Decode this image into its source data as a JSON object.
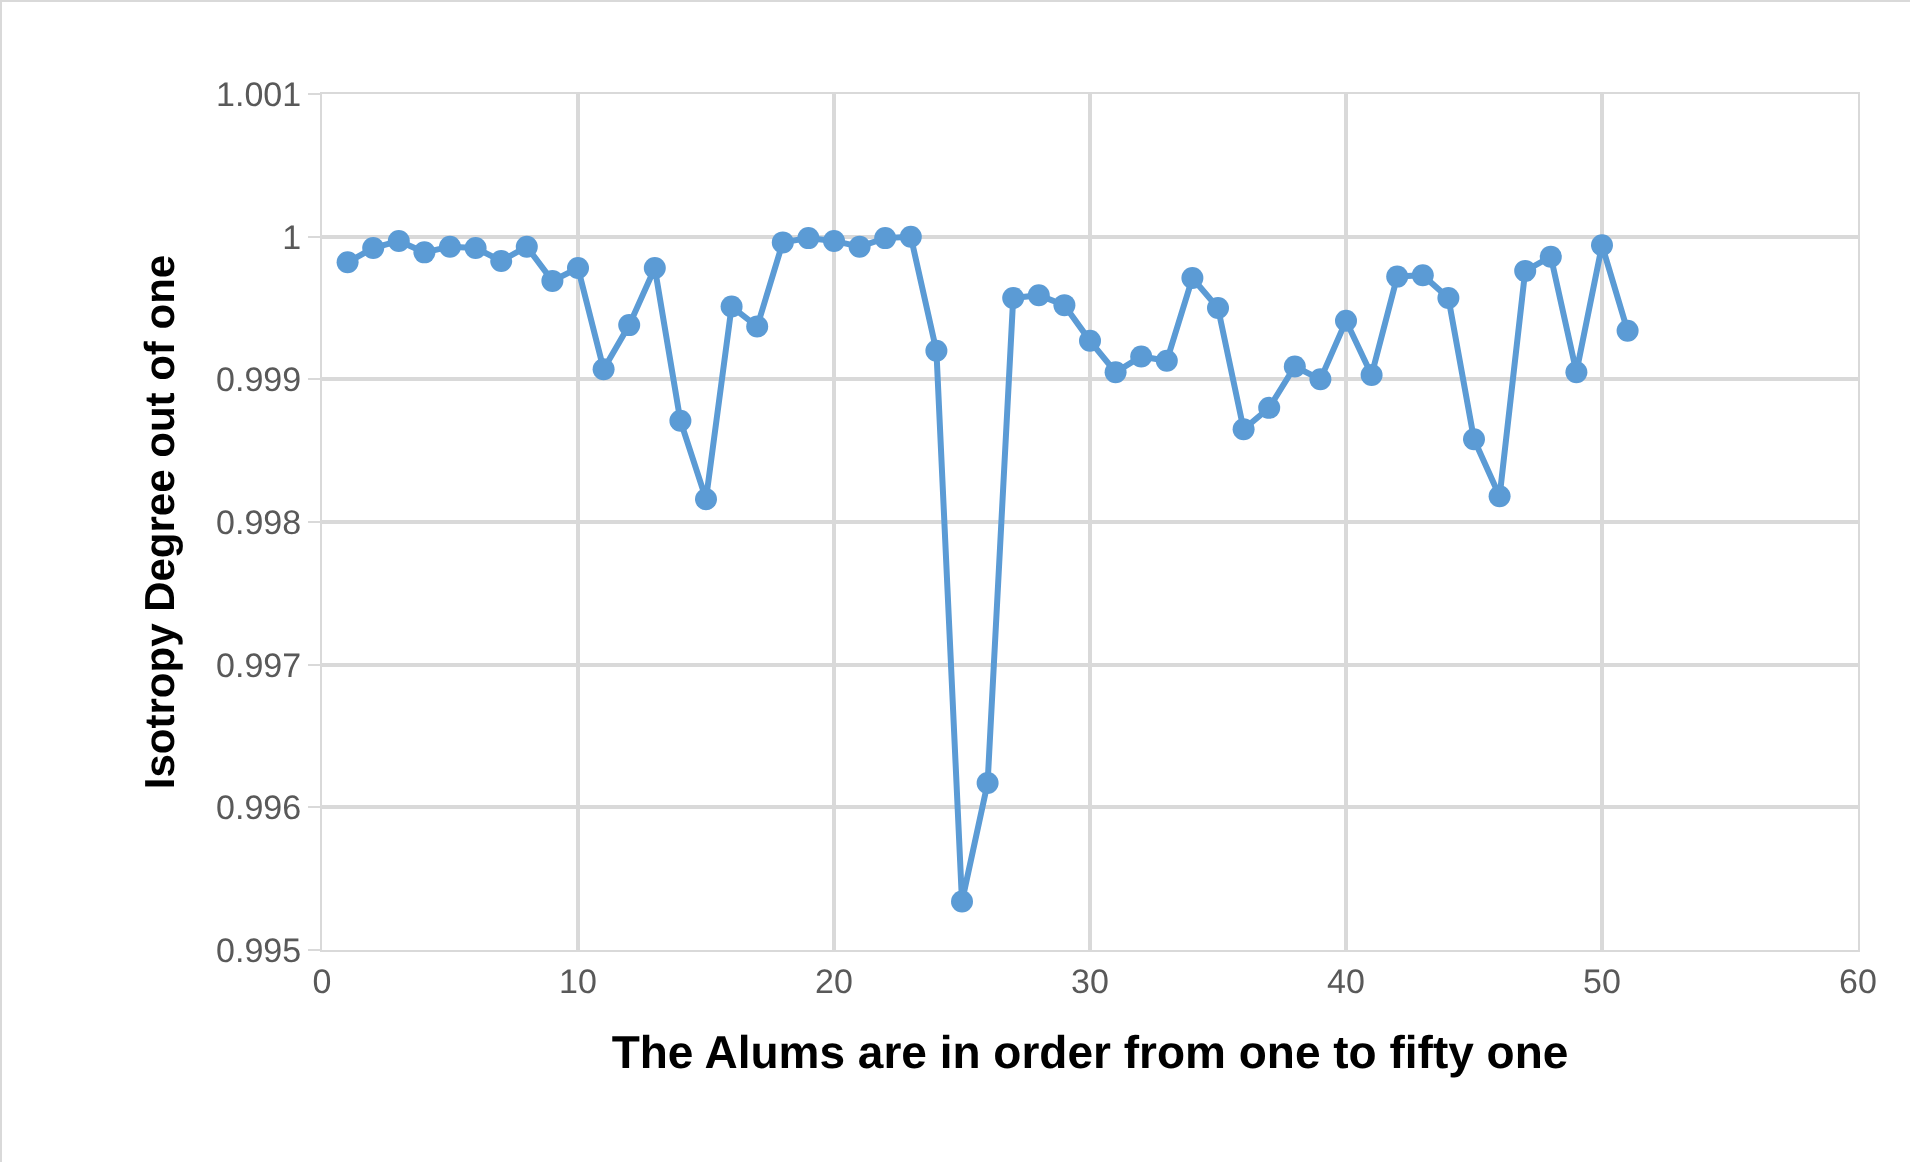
{
  "chart_data": {
    "type": "line",
    "xlabel": "The Alums are in order from one to fifty one",
    "ylabel": "Isotropy Degree out of one",
    "x": [
      1,
      2,
      3,
      4,
      5,
      6,
      7,
      8,
      9,
      10,
      11,
      12,
      13,
      14,
      15,
      16,
      17,
      18,
      19,
      20,
      21,
      22,
      23,
      24,
      25,
      26,
      27,
      28,
      29,
      30,
      31,
      32,
      33,
      34,
      35,
      36,
      37,
      38,
      39,
      40,
      41,
      42,
      43,
      44,
      45,
      46,
      47,
      48,
      49,
      50,
      51
    ],
    "series": [
      {
        "color": "#5b9bd5",
        "values": [
          0.99982,
          0.99992,
          0.99997,
          0.99989,
          0.99993,
          0.99992,
          0.99983,
          0.99993,
          0.99969,
          0.99978,
          0.99907,
          0.99938,
          0.99978,
          0.99871,
          0.99816,
          0.99951,
          0.99937,
          0.99996,
          0.99999,
          0.99997,
          0.99993,
          0.99999,
          1.0,
          0.9992,
          0.99534,
          0.99617,
          0.99957,
          0.99959,
          0.99952,
          0.99927,
          0.99905,
          0.99916,
          0.99913,
          0.99971,
          0.9995,
          0.99865,
          0.9988,
          0.99909,
          0.999,
          0.99941,
          0.99903,
          0.99972,
          0.99973,
          0.99957,
          0.99858,
          0.99818,
          0.99976,
          0.99986,
          0.99905,
          0.99994,
          0.99934
        ]
      }
    ],
    "xlim": [
      0,
      60
    ],
    "xticks": [
      0,
      10,
      20,
      30,
      40,
      50,
      60
    ],
    "ylim": [
      0.995,
      1.001
    ],
    "yticks": [
      0.995,
      0.996,
      0.997,
      0.998,
      0.999,
      1,
      1.001
    ],
    "grid": true,
    "marker": "circle",
    "line_style": "solid"
  }
}
